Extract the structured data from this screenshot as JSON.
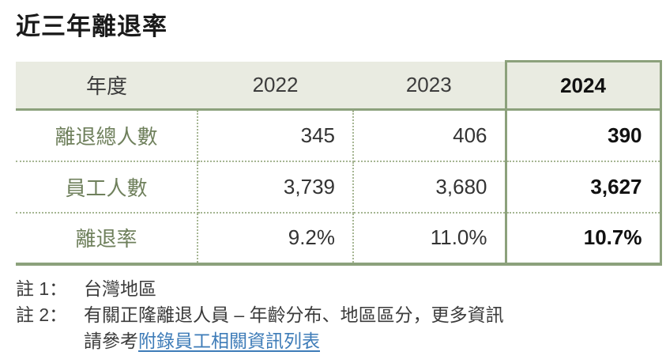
{
  "page": {
    "title": "近三年離退率"
  },
  "table": {
    "header": {
      "year_label": "年度",
      "years": [
        "2022",
        "2023",
        "2024"
      ]
    },
    "rows": [
      {
        "label": "離退總人數",
        "values": [
          "345",
          "406",
          "390"
        ]
      },
      {
        "label": "員工人數",
        "values": [
          "3,739",
          "3,680",
          "3,627"
        ]
      },
      {
        "label": "離退率",
        "values": [
          "9.2%",
          "11.0%",
          "10.7%"
        ]
      }
    ],
    "highlighted_year": "2024"
  },
  "notes": {
    "note1": {
      "prefix": "註 1：",
      "text": "台灣地區"
    },
    "note2": {
      "prefix": "註 2：",
      "line1": "有關正隆離退人員 – 年齡分布、地區區分，更多資訊",
      "line2_prefix": "請參考",
      "link_text": "附錄員工相關資訊列表"
    }
  },
  "chart_data": {
    "type": "table",
    "title": "近三年離退率",
    "columns": [
      "年度",
      "2022",
      "2023",
      "2024"
    ],
    "rows": [
      [
        "離退總人數",
        345,
        406,
        390
      ],
      [
        "員工人數",
        3739,
        3680,
        3627
      ],
      [
        "離退率",
        "9.2%",
        "11.0%",
        "10.7%"
      ]
    ],
    "highlighted_column": "2024"
  },
  "colors": {
    "accent_green": "#8CA17C",
    "dotted_green": "#A6B693",
    "header_bg": "#E9EBE1",
    "label_text_green": "#6F805C",
    "link_blue": "#3E7CB8",
    "body_text": "#333333",
    "highlight_text": "#111111"
  }
}
